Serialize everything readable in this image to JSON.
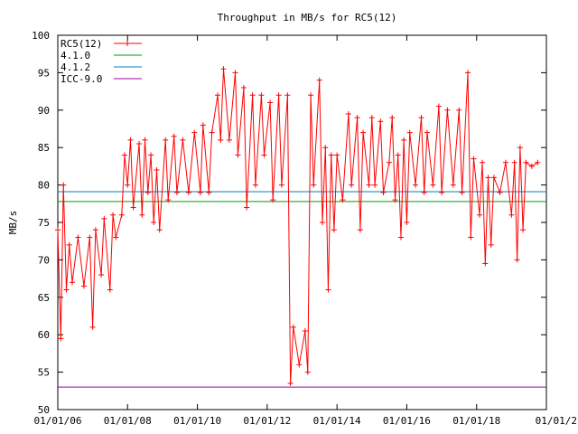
{
  "chart_data": {
    "type": "line",
    "title": "Throughput in MB/s for RC5(12)",
    "ylabel": "MB/s",
    "xlabel": "",
    "ylim": [
      50,
      100
    ],
    "xlim": [
      "2006-01-01",
      "2020-01-01"
    ],
    "grid": false,
    "legend_position": "top-left",
    "y_ticks": [
      "50",
      "55",
      "60",
      "65",
      "70",
      "75",
      "80",
      "85",
      "90",
      "95",
      "100"
    ],
    "x_ticks": [
      {
        "date": "2006-01-01",
        "label": "01/01/06"
      },
      {
        "date": "2008-01-01",
        "label": "01/01/08"
      },
      {
        "date": "2010-01-01",
        "label": "01/01/10"
      },
      {
        "date": "2012-01-01",
        "label": "01/01/12"
      },
      {
        "date": "2014-01-01",
        "label": "01/01/14"
      },
      {
        "date": "2016-01-01",
        "label": "01/01/16"
      },
      {
        "date": "2018-01-01",
        "label": "01/01/18"
      },
      {
        "date": "2020-01-01",
        "label": "01/01/2"
      }
    ],
    "series": [
      {
        "name": "RC5(12)",
        "color": "#ff0000",
        "marker": "plus",
        "points": [
          [
            "2006-01-01",
            74
          ],
          [
            "2006-02-01",
            59.5
          ],
          [
            "2006-03-01",
            80
          ],
          [
            "2006-04-01",
            66
          ],
          [
            "2006-05-01",
            72
          ],
          [
            "2006-06-01",
            67
          ],
          [
            "2006-08-01",
            73
          ],
          [
            "2006-10-01",
            66.5
          ],
          [
            "2006-12-01",
            73
          ],
          [
            "2007-01-01",
            61
          ],
          [
            "2007-02-01",
            74
          ],
          [
            "2007-04-01",
            68
          ],
          [
            "2007-05-01",
            75.5
          ],
          [
            "2007-07-01",
            66
          ],
          [
            "2007-08-01",
            76
          ],
          [
            "2007-09-01",
            73
          ],
          [
            "2007-11-01",
            76
          ],
          [
            "2007-12-01",
            84
          ],
          [
            "2008-01-01",
            80
          ],
          [
            "2008-02-01",
            86
          ],
          [
            "2008-03-01",
            77
          ],
          [
            "2008-05-01",
            85.5
          ],
          [
            "2008-06-01",
            76
          ],
          [
            "2008-07-01",
            86
          ],
          [
            "2008-08-01",
            79
          ],
          [
            "2008-09-01",
            84
          ],
          [
            "2008-10-01",
            75
          ],
          [
            "2008-11-01",
            82
          ],
          [
            "2008-12-01",
            74
          ],
          [
            "2009-02-01",
            86
          ],
          [
            "2009-03-01",
            78
          ],
          [
            "2009-05-01",
            86.5
          ],
          [
            "2009-06-01",
            79
          ],
          [
            "2009-08-01",
            86
          ],
          [
            "2009-10-01",
            79
          ],
          [
            "2009-12-01",
            87
          ],
          [
            "2010-02-01",
            79
          ],
          [
            "2010-03-01",
            88
          ],
          [
            "2010-05-01",
            79
          ],
          [
            "2010-06-01",
            87
          ],
          [
            "2010-08-01",
            92
          ],
          [
            "2010-09-01",
            86
          ],
          [
            "2010-10-01",
            95.5
          ],
          [
            "2010-12-01",
            86
          ],
          [
            "2011-02-01",
            95
          ],
          [
            "2011-03-01",
            84
          ],
          [
            "2011-05-01",
            93
          ],
          [
            "2011-06-01",
            77
          ],
          [
            "2011-08-01",
            92
          ],
          [
            "2011-09-01",
            80
          ],
          [
            "2011-11-01",
            92
          ],
          [
            "2011-12-01",
            84
          ],
          [
            "2012-02-01",
            91
          ],
          [
            "2012-03-01",
            78
          ],
          [
            "2012-05-01",
            92
          ],
          [
            "2012-06-01",
            80
          ],
          [
            "2012-08-01",
            92
          ],
          [
            "2012-09-01",
            53.5
          ],
          [
            "2012-10-01",
            61
          ],
          [
            "2012-12-01",
            56
          ],
          [
            "2013-02-01",
            60.5
          ],
          [
            "2013-03-01",
            55
          ],
          [
            "2013-04-01",
            92
          ],
          [
            "2013-05-01",
            80
          ],
          [
            "2013-07-01",
            94
          ],
          [
            "2013-08-01",
            75
          ],
          [
            "2013-09-01",
            85
          ],
          [
            "2013-10-01",
            66
          ],
          [
            "2013-11-01",
            84
          ],
          [
            "2013-12-01",
            74
          ],
          [
            "2014-01-01",
            84
          ],
          [
            "2014-03-01",
            78
          ],
          [
            "2014-05-01",
            89.5
          ],
          [
            "2014-06-01",
            80
          ],
          [
            "2014-08-01",
            89
          ],
          [
            "2014-09-01",
            74
          ],
          [
            "2014-10-01",
            87
          ],
          [
            "2014-12-01",
            80
          ],
          [
            "2015-01-01",
            89
          ],
          [
            "2015-02-01",
            80
          ],
          [
            "2015-04-01",
            88.5
          ],
          [
            "2015-05-01",
            79
          ],
          [
            "2015-07-01",
            83
          ],
          [
            "2015-08-01",
            89
          ],
          [
            "2015-09-01",
            78
          ],
          [
            "2015-10-01",
            84
          ],
          [
            "2015-11-01",
            73
          ],
          [
            "2015-12-01",
            86
          ],
          [
            "2016-01-01",
            75
          ],
          [
            "2016-02-01",
            87
          ],
          [
            "2016-04-01",
            80
          ],
          [
            "2016-06-01",
            89
          ],
          [
            "2016-07-01",
            79
          ],
          [
            "2016-08-01",
            87
          ],
          [
            "2016-10-01",
            80
          ],
          [
            "2016-12-01",
            90.5
          ],
          [
            "2017-01-01",
            79
          ],
          [
            "2017-03-01",
            90
          ],
          [
            "2017-05-01",
            80
          ],
          [
            "2017-07-01",
            90
          ],
          [
            "2017-08-01",
            79
          ],
          [
            "2017-10-01",
            95
          ],
          [
            "2017-11-01",
            73
          ],
          [
            "2017-12-01",
            83.5
          ],
          [
            "2018-02-01",
            76
          ],
          [
            "2018-03-01",
            83
          ],
          [
            "2018-04-01",
            69.5
          ],
          [
            "2018-05-01",
            81
          ],
          [
            "2018-06-01",
            72
          ],
          [
            "2018-07-01",
            81
          ],
          [
            "2018-09-01",
            79
          ],
          [
            "2018-11-01",
            83
          ],
          [
            "2019-01-01",
            76
          ],
          [
            "2019-02-01",
            83
          ],
          [
            "2019-03-01",
            70
          ],
          [
            "2019-04-01",
            85
          ],
          [
            "2019-05-01",
            74
          ],
          [
            "2019-06-01",
            83
          ],
          [
            "2019-08-01",
            82.5
          ],
          [
            "2019-10-01",
            83
          ]
        ]
      },
      {
        "name": "4.1.0",
        "color": "#00a000",
        "value": 77.8
      },
      {
        "name": "4.1.2",
        "color": "#0080c0",
        "value": 79.1
      },
      {
        "name": "ICC-9.0",
        "color": "#a000a0",
        "value": 53
      }
    ]
  }
}
